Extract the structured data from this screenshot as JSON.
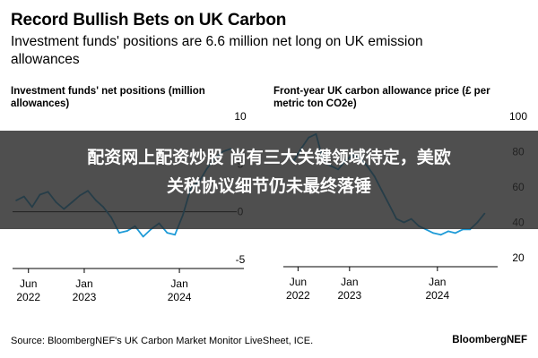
{
  "header": {
    "title": "Record Bullish Bets on UK Carbon",
    "subtitle": "Investment funds' positions are 6.6 million net long on UK emission allowances"
  },
  "overlay": {
    "line1": "配资网上配资炒股 尚有三大关键领域待定，美欧",
    "line2": "关税协议细节仍未最终落锤"
  },
  "footer": {
    "source": "Source: BloombergNEF's UK Carbon Market Monitor LiveSheet, ICE.",
    "brand": "BloombergNEF"
  },
  "chart_data": [
    {
      "type": "line",
      "title": "Investment funds' net positions (million allowances)",
      "x_tick_labels": [
        {
          "month": "Jun",
          "year": "2022"
        },
        {
          "month": "Jan",
          "year": "2023"
        },
        {
          "month": "Jan",
          "year": "2024"
        }
      ],
      "x_tick_dates": [
        "2022-06-01",
        "2023-01-01",
        "2024-01-01"
      ],
      "y_tick_labels": [
        "10",
        "5",
        "0",
        "-5"
      ],
      "ylim": [
        -5,
        10
      ],
      "xlim": [
        "2022-04-01",
        "2024-08-01"
      ],
      "zero_line": true,
      "color": "#1f9bd7",
      "series": [
        {
          "x": [
            "2022-04",
            "2022-05",
            "2022-06",
            "2022-07",
            "2022-08",
            "2022-09",
            "2022-10",
            "2022-11",
            "2022-12",
            "2023-01",
            "2023-02",
            "2023-03",
            "2023-04",
            "2023-05",
            "2023-06",
            "2023-07",
            "2023-08",
            "2023-09",
            "2023-10",
            "2023-11",
            "2023-12",
            "2024-01",
            "2024-02",
            "2024-03",
            "2024-04",
            "2024-05",
            "2024-06",
            "2024-07"
          ],
          "values": [
            1.2,
            1.6,
            0.5,
            1.8,
            2.1,
            1.0,
            0.3,
            1.0,
            1.7,
            2.2,
            1.2,
            0.5,
            -0.6,
            -2.2,
            -2.0,
            -1.5,
            -2.6,
            -1.8,
            -1.2,
            -2.2,
            -2.4,
            -0.3,
            2.6,
            3.1,
            4.5,
            5.6,
            6.3,
            6.6
          ]
        }
      ]
    },
    {
      "type": "line",
      "title": "Front-year UK carbon allowance price (£ per metric ton CO2e)",
      "x_tick_labels": [
        {
          "month": "Jun",
          "year": "2022"
        },
        {
          "month": "Jan",
          "year": "2023"
        },
        {
          "month": "Jan",
          "year": "2024"
        }
      ],
      "x_tick_dates": [
        "2022-06-01",
        "2023-01-01",
        "2024-01-01"
      ],
      "y_tick_labels": [
        "100",
        "80",
        "60",
        "40",
        "20"
      ],
      "ylim": [
        20,
        100
      ],
      "xlim": [
        "2022-04-01",
        "2024-08-01"
      ],
      "color": "#1f9bd7",
      "series": [
        {
          "x": [
            "2022-04",
            "2022-05",
            "2022-06",
            "2022-07",
            "2022-08",
            "2022-09",
            "2022-10",
            "2022-11",
            "2022-12",
            "2023-01",
            "2023-02",
            "2023-03",
            "2023-04",
            "2023-05",
            "2023-06",
            "2023-07",
            "2023-08",
            "2023-09",
            "2023-10",
            "2023-11",
            "2023-12",
            "2024-01",
            "2024-02",
            "2024-03",
            "2024-04",
            "2024-05",
            "2024-06",
            "2024-07"
          ],
          "values": [
            78,
            75,
            82,
            88,
            90,
            74,
            72,
            70,
            75,
            78,
            76,
            72,
            66,
            58,
            50,
            42,
            40,
            42,
            38,
            36,
            34,
            33,
            35,
            34,
            36,
            36,
            40,
            45
          ]
        }
      ]
    }
  ]
}
